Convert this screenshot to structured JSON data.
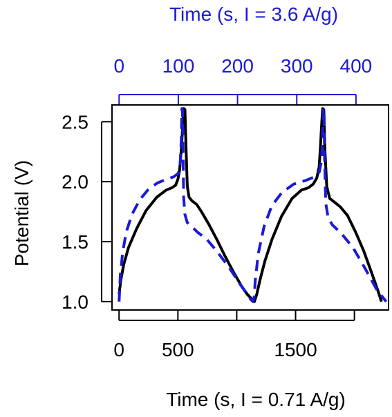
{
  "chart_data": {
    "type": "line",
    "title": "",
    "xlabel": "Time (s, I = 0.71 A/g)",
    "ylabel": "Potential (V)",
    "x2label": "Time (s, I = 3.6 A/g)",
    "xlim": [
      -60,
      2290
    ],
    "ylim": [
      0.93,
      2.64
    ],
    "x2lim": [
      -12,
      455
    ],
    "xticks": [
      0,
      500,
      1000,
      1500,
      2000
    ],
    "xtick_labels": [
      "0",
      "500",
      "",
      "1500",
      ""
    ],
    "yticks": [
      1.0,
      1.5,
      2.0,
      2.5
    ],
    "ytick_labels": [
      "1.0",
      "1.5",
      "2.0",
      "2.5"
    ],
    "x2ticks": [
      0,
      100,
      200,
      300,
      400
    ],
    "x2tick_labels": [
      "0",
      "100",
      "200",
      "300",
      "400"
    ],
    "grid": false,
    "colors": {
      "primary": "#000000",
      "secondary_axis": "#1a1ad6",
      "secondary_line": "#1a1ad6",
      "background": "#ffffff"
    },
    "series": [
      {
        "name": "",
        "axis": "bottom",
        "color": "#000000",
        "style": "solid",
        "x": [
          0,
          15,
          40,
          80,
          150,
          230,
          320,
          400,
          450,
          480,
          500,
          515,
          530,
          540,
          550,
          560,
          570,
          580,
          595,
          620,
          660,
          700,
          760,
          830,
          900,
          970,
          1040,
          1090,
          1130,
          1150,
          1170,
          1200,
          1240,
          1300,
          1380,
          1470,
          1550,
          1610,
          1650,
          1680,
          1700,
          1710,
          1720,
          1730,
          1740,
          1750,
          1765,
          1790,
          1830,
          1880,
          1940,
          2010,
          2080,
          2150,
          2200,
          2230
        ],
        "y": [
          1.06,
          1.18,
          1.31,
          1.45,
          1.61,
          1.76,
          1.87,
          1.93,
          1.95,
          1.97,
          2.02,
          2.1,
          2.28,
          2.45,
          2.61,
          2.6,
          2.25,
          1.96,
          1.87,
          1.84,
          1.81,
          1.75,
          1.65,
          1.52,
          1.38,
          1.25,
          1.13,
          1.06,
          1.02,
          1.0,
          1.06,
          1.19,
          1.34,
          1.52,
          1.71,
          1.86,
          1.93,
          1.95,
          1.98,
          2.03,
          2.12,
          2.27,
          2.45,
          2.61,
          2.6,
          2.25,
          1.96,
          1.86,
          1.83,
          1.79,
          1.72,
          1.58,
          1.42,
          1.23,
          1.09,
          1.0
        ]
      },
      {
        "name": "",
        "axis": "top",
        "color": "#1a1ad6",
        "style": "dashed",
        "x": [
          0,
          2,
          6,
          12,
          22,
          35,
          50,
          65,
          80,
          92,
          100,
          103,
          105,
          106,
          107,
          108,
          109,
          111,
          115,
          122,
          132,
          148,
          165,
          185,
          205,
          218,
          222,
          224,
          226,
          227,
          228,
          230,
          235,
          245,
          258,
          275,
          295,
          315,
          330,
          338,
          342,
          344,
          345,
          346,
          347,
          349,
          353,
          360,
          375,
          395,
          415,
          435,
          451
        ],
        "y": [
          1.0,
          1.22,
          1.41,
          1.58,
          1.73,
          1.85,
          1.94,
          1.99,
          2.02,
          2.04,
          2.07,
          2.14,
          2.35,
          2.61,
          2.6,
          2.25,
          1.87,
          1.73,
          1.66,
          1.63,
          1.58,
          1.52,
          1.42,
          1.29,
          1.14,
          1.05,
          1.02,
          1.01,
          1.0,
          1.02,
          1.03,
          1.18,
          1.4,
          1.63,
          1.8,
          1.91,
          1.98,
          2.01,
          2.04,
          2.08,
          2.18,
          2.43,
          2.61,
          2.6,
          2.2,
          1.82,
          1.7,
          1.64,
          1.57,
          1.45,
          1.28,
          1.1,
          1.0
        ]
      }
    ]
  }
}
